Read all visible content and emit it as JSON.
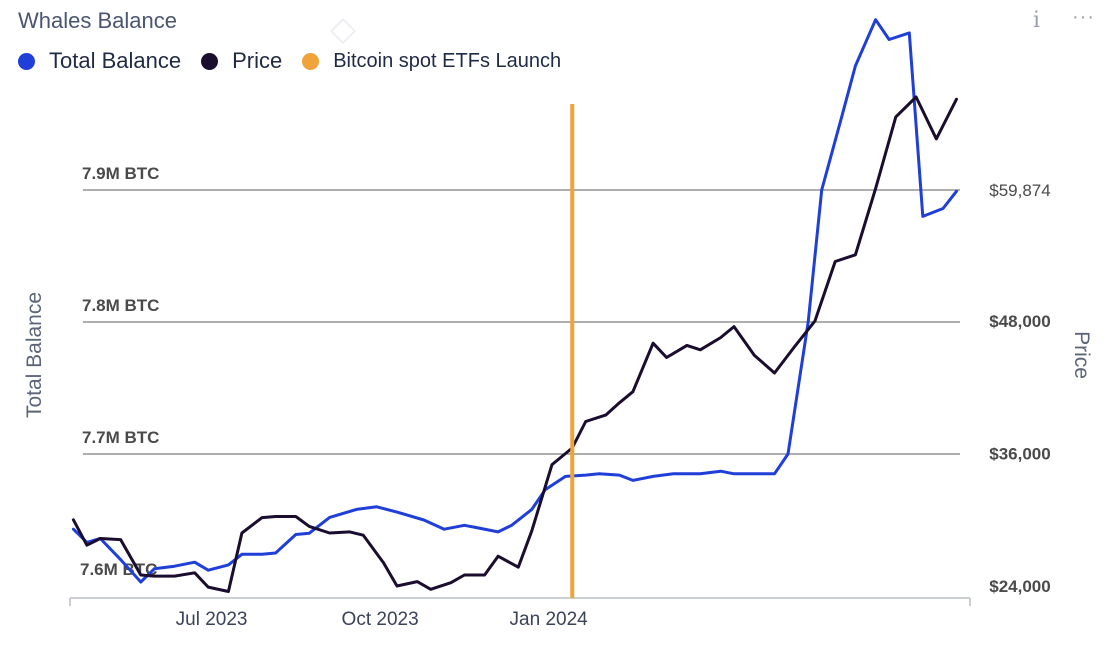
{
  "header": {
    "title": "Whales Balance",
    "info_icon": "info-icon",
    "more_icon": "more-options-icon"
  },
  "legend": [
    {
      "label": "Total Balance",
      "color": "#1f3fd8"
    },
    {
      "label": "Price",
      "color": "#1a0d2e"
    },
    {
      "label": "Bitcoin spot ETFs Launch",
      "color": "#f0a33a"
    }
  ],
  "chart_data": {
    "type": "line",
    "x_ticks": [
      "Jul 2023",
      "Oct 2023",
      "Jan 2024"
    ],
    "left_axis": {
      "label": "Total Balance",
      "ticks": [
        "7.6M BTC",
        "7.7M BTC",
        "7.8M BTC",
        "7.9M BTC"
      ],
      "tick_values": [
        7.6,
        7.7,
        7.8,
        7.9
      ],
      "unit": "M BTC"
    },
    "right_axis": {
      "label": "Price",
      "ticks": [
        "$24,000",
        "$36,000",
        "$48,000",
        "$59,874"
      ],
      "tick_values": [
        24000,
        36000,
        48000,
        59874
      ]
    },
    "event_marker": {
      "label": "Bitcoin spot ETFs Launch",
      "x": 2024.03
    },
    "series": [
      {
        "name": "Total Balance",
        "axis": "left",
        "color": "#1f3fd8",
        "x": [
          2023.29,
          2023.31,
          2023.33,
          2023.36,
          2023.39,
          2023.41,
          2023.44,
          2023.47,
          2023.49,
          2023.52,
          2023.54,
          2023.57,
          2023.59,
          2023.62,
          2023.64,
          2023.67,
          2023.71,
          2023.74,
          2023.77,
          2023.81,
          2023.84,
          2023.87,
          2023.89,
          2023.92,
          2023.94,
          2023.97,
          2023.99,
          2024.02,
          2024.05,
          2024.07,
          2024.1,
          2024.12,
          2024.15,
          2024.18,
          2024.2,
          2024.22,
          2024.25,
          2024.27,
          2024.3,
          2024.33,
          2024.35,
          2024.38,
          2024.4,
          2024.43,
          2024.45,
          2024.48,
          2024.5,
          2024.53,
          2024.55,
          2024.58,
          2024.6
        ],
        "y": [
          7.643,
          7.633,
          7.636,
          7.62,
          7.603,
          7.613,
          7.615,
          7.618,
          7.612,
          7.616,
          7.624,
          7.624,
          7.625,
          7.639,
          7.64,
          7.652,
          7.658,
          7.66,
          7.656,
          7.65,
          7.643,
          7.646,
          7.644,
          7.641,
          7.646,
          7.658,
          7.673,
          7.683,
          7.684,
          7.685,
          7.684,
          7.68,
          7.683,
          7.685,
          7.685,
          7.685,
          7.687,
          7.685,
          7.685,
          7.685,
          7.7,
          7.8,
          7.9,
          7.956,
          7.994,
          8.029,
          8.014,
          8.019,
          7.88,
          7.886,
          7.899
        ]
      },
      {
        "name": "Price",
        "axis": "right",
        "color": "#1a0d2e",
        "x": [
          2023.29,
          2023.31,
          2023.33,
          2023.36,
          2023.39,
          2023.41,
          2023.44,
          2023.47,
          2023.49,
          2023.52,
          2023.54,
          2023.57,
          2023.59,
          2023.62,
          2023.64,
          2023.67,
          2023.7,
          2023.72,
          2023.75,
          2023.77,
          2023.8,
          2023.82,
          2023.85,
          2023.87,
          2023.9,
          2023.92,
          2023.95,
          2023.97,
          2024.0,
          2024.03,
          2024.05,
          2024.08,
          2024.1,
          2024.12,
          2024.15,
          2024.17,
          2024.2,
          2024.22,
          2024.25,
          2024.27,
          2024.3,
          2024.33,
          2024.36,
          2024.39,
          2024.42,
          2024.45,
          2024.48,
          2024.51,
          2024.54,
          2024.57,
          2024.6
        ],
        "y": [
          30000,
          27700,
          28300,
          28200,
          25000,
          24900,
          24900,
          25200,
          23900,
          23500,
          28800,
          30200,
          30300,
          30300,
          29400,
          28800,
          28900,
          28600,
          26100,
          24000,
          24400,
          23700,
          24300,
          25000,
          25000,
          26700,
          25700,
          29000,
          35000,
          36500,
          38900,
          39500,
          40600,
          41600,
          46000,
          44700,
          45800,
          45400,
          46500,
          47500,
          44900,
          43300,
          45700,
          48000,
          53400,
          54000,
          60000,
          66500,
          68300,
          64500,
          68100
        ]
      }
    ]
  }
}
